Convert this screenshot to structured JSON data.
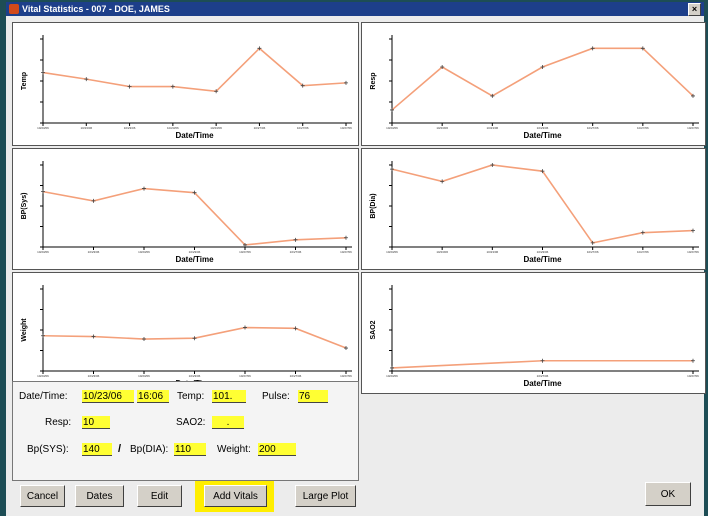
{
  "window": {
    "title": "Vital Statistics - 007 - DOE, JAMES",
    "close_glyph": "×"
  },
  "chart_data": [
    {
      "type": "line",
      "ylabel": "Temp",
      "xlabel": "Date/Time",
      "x": [
        "10/23/06",
        "10/23/06",
        "10/23/06",
        "10/23/06",
        "10/23/06",
        "10/27/06",
        "10/27/06",
        "10/27/06"
      ],
      "values": [
        5.4,
        4.7,
        3.9,
        3.9,
        3.4,
        8.0,
        4.0,
        4.3
      ],
      "ylim": [
        0,
        9
      ]
    },
    {
      "type": "line",
      "ylabel": "Resp",
      "xlabel": "Date/Time",
      "x": [
        "10/23/06",
        "10/23/06",
        "10/23/06",
        "10/23/06",
        "10/27/06",
        "10/27/06",
        "10/27/06"
      ],
      "values": [
        1.4,
        6.0,
        2.9,
        6.0,
        8.0,
        8.0,
        2.9
      ],
      "ylim": [
        0,
        9
      ]
    },
    {
      "type": "line",
      "ylabel": "BP(Sys)",
      "xlabel": "Date/Time",
      "x": [
        "10/23/06",
        "10/23/06",
        "10/23/06",
        "10/23/06",
        "10/27/06",
        "10/27/06",
        "10/27/06"
      ],
      "values": [
        5.4,
        4.5,
        5.7,
        5.3,
        0.2,
        0.7,
        0.9
      ],
      "ylim": [
        0,
        8
      ]
    },
    {
      "type": "line",
      "ylabel": "BP(Dia)",
      "xlabel": "Date/Time",
      "x": [
        "10/23/06",
        "10/23/06",
        "10/23/06",
        "10/23/06",
        "10/27/06",
        "10/27/06",
        "10/27/06"
      ],
      "values": [
        3.8,
        3.2,
        4.0,
        3.7,
        0.2,
        0.7,
        0.8
      ],
      "ylim": [
        0,
        4
      ]
    },
    {
      "type": "line",
      "ylabel": "Weight",
      "xlabel": "Date/Time",
      "x": [
        "10/23/06",
        "10/23/06",
        "10/23/06",
        "10/23/06",
        "10/27/06",
        "10/27/06",
        "10/27/06"
      ],
      "values": [
        4.3,
        4.2,
        3.9,
        4.0,
        5.3,
        5.2,
        2.8
      ],
      "ylim": [
        0,
        10
      ]
    },
    {
      "type": "line",
      "ylabel": "SAO2",
      "xlabel": "Date/Time",
      "x": [
        "10/23/06",
        "10/27/06",
        "10/27/06"
      ],
      "values": [
        0.3,
        1.0,
        1.0
      ],
      "ylim": [
        0,
        8
      ]
    }
  ],
  "form": {
    "datetime_label": "Date/Time:",
    "date_value": "10/23/06",
    "time_value": "16:06",
    "temp_label": "Temp:",
    "temp_value": "101.",
    "pulse_label": "Pulse:",
    "pulse_value": "76",
    "resp_label": "Resp:",
    "resp_value": "10",
    "sao2_label": "SAO2:",
    "sao2_value": ".",
    "bpsys_label": "Bp(SYS):",
    "bpsys_value": "140",
    "slash": "/",
    "bpdia_label": "Bp(DIA):",
    "bpdia_value": "110",
    "weight_label": "Weight:",
    "weight_value": "200"
  },
  "buttons": {
    "cancel": "Cancel",
    "dates": "Dates",
    "edit": "Edit",
    "add_vitals": "Add Vitals",
    "large_plot": "Large Plot",
    "ok": "OK"
  },
  "colors": {
    "line": "#f4a07a",
    "field": "#ffff33",
    "highlight": "#ffee00",
    "titlebar": "#1d3f8a"
  }
}
